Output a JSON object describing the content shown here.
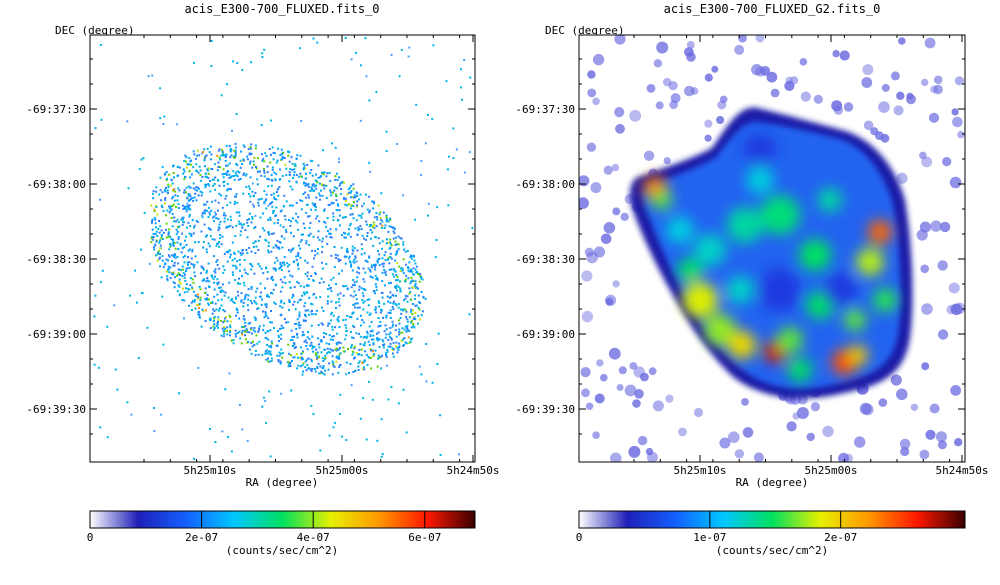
{
  "colormap_stops": [
    "#ffffff",
    "#1f1fb8",
    "#1460ff",
    "#00c8ff",
    "#00e060",
    "#e6f000",
    "#ff9800",
    "#ff1800",
    "#3a0000"
  ],
  "chart_data": [
    {
      "type": "heatmap",
      "title": "acis_E300-700_FLUXED.fits_0",
      "xlabel": "RA (degree)",
      "ylabel": "DEC (degree)",
      "x_ticks": [
        "5h25m10s",
        "5h25m00s",
        "5h24m50s"
      ],
      "y_ticks": [
        "-69:37:30",
        "-69:38:00",
        "-69:38:30",
        "-69:39:00",
        "-69:39:30"
      ],
      "smoothed": false,
      "colorbar": {
        "label": "(counts/sec/cm^2)",
        "ticks": [
          "0",
          "2e-07",
          "4e-07",
          "6e-07"
        ],
        "tick_values": [
          0,
          2e-07,
          4e-07,
          6e-07
        ],
        "range": [
          0,
          6.9e-07
        ]
      }
    },
    {
      "type": "heatmap",
      "title": "acis_E300-700_FLUXED_G2.fits_0",
      "xlabel": "RA (degree)",
      "ylabel": "DEC (degree)",
      "x_ticks": [
        "5h25m10s",
        "5h25m00s",
        "5h24m50s"
      ],
      "y_ticks": [
        "-69:37:30",
        "-69:38:00",
        "-69:38:30",
        "-69:39:00",
        "-69:39:30"
      ],
      "smoothed": true,
      "colorbar": {
        "label": "(counts/sec/cm^2)",
        "ticks": [
          "0",
          "1e-07",
          "2e-07"
        ],
        "tick_values": [
          0,
          1e-07,
          2e-07
        ],
        "range": [
          0,
          2.95e-07
        ]
      }
    }
  ]
}
